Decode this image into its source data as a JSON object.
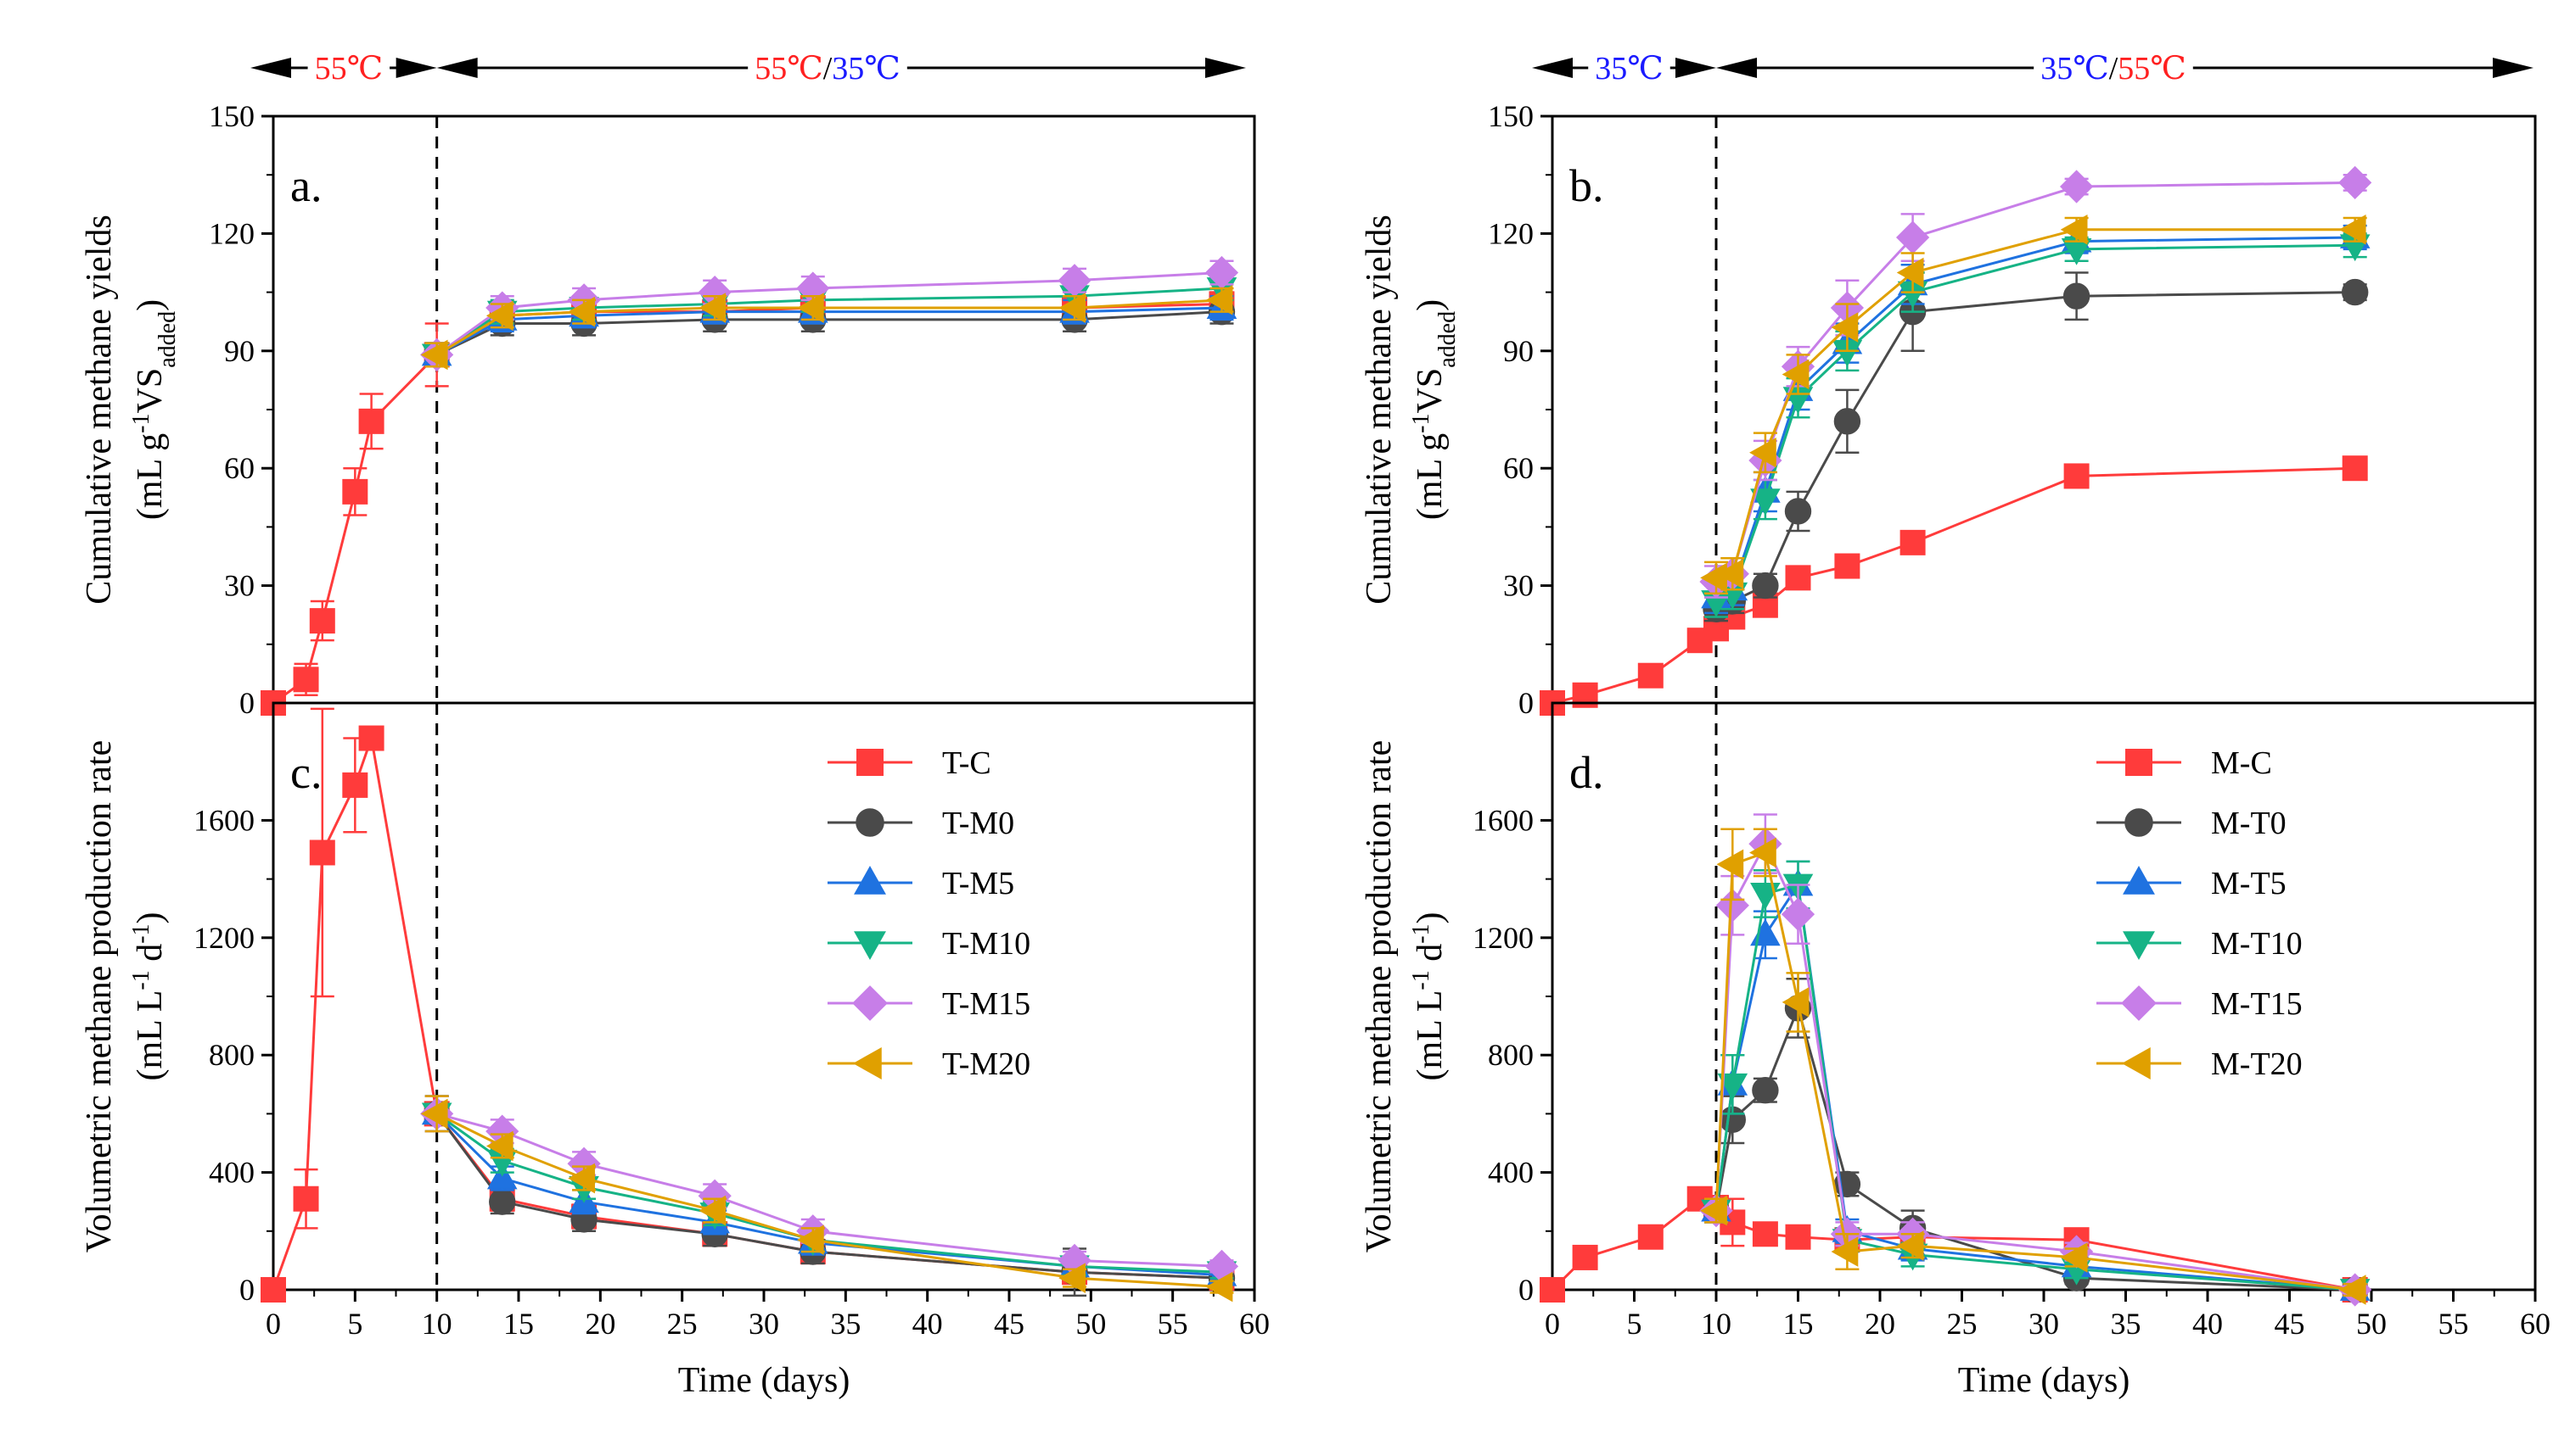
{
  "figure": {
    "xlabel": "Time (days)",
    "ylabel_cumulative_line1": "Cumulative methane yields",
    "ylabel_cumulative_line2": [
      "(mL g",
      "-1",
      "VS",
      "added",
      ")"
    ],
    "ylabel_rate_line1": "Volumetric methane production rate",
    "ylabel_rate_line2": [
      "(mL L",
      "-1",
      " d",
      "-1",
      ")"
    ]
  },
  "colors": {
    "C": "#ff3b3b",
    "C0": "#4a4a4a",
    "C5": "#1f72e0",
    "C10": "#16b386",
    "C15": "#c77ee8",
    "C20": "#e0a000",
    "red_text": "#ff2020",
    "blue_text": "#1a1aff"
  },
  "temperature_bar": {
    "left": {
      "phase1": "55℃",
      "phase2_a": "55℃",
      "phase2_sep": "/",
      "phase2_b": "35℃"
    },
    "right": {
      "phase1": "35℃",
      "phase2_a": "35℃",
      "phase2_sep": "/",
      "phase2_b": "55℃"
    }
  },
  "chart_data": [
    {
      "type": "line",
      "panel": "a.",
      "ylim": [
        0,
        150
      ],
      "yticks": [
        0,
        30,
        60,
        90,
        120,
        150
      ],
      "xlim": [
        0,
        60
      ],
      "switch_day": 10,
      "series": [
        {
          "name": "T-C",
          "marker": "square",
          "color": "#ff3b3b",
          "x": [
            0,
            2,
            3,
            5,
            6,
            10,
            14,
            19,
            27,
            33,
            49,
            58
          ],
          "y": [
            0,
            6,
            21,
            54,
            72,
            89,
            99,
            100,
            100,
            101,
            101,
            102
          ],
          "err": [
            0,
            4,
            5,
            6,
            7,
            8,
            3,
            3,
            3,
            3,
            3,
            3
          ]
        },
        {
          "name": "T-M0",
          "marker": "circle",
          "color": "#4a4a4a",
          "x": [
            10,
            14,
            19,
            27,
            33,
            49,
            58
          ],
          "y": [
            89,
            97,
            97,
            98,
            98,
            98,
            100
          ],
          "err": [
            3,
            3,
            3,
            3,
            3,
            3,
            3
          ]
        },
        {
          "name": "T-M5",
          "marker": "triangle-up",
          "color": "#1f72e0",
          "x": [
            10,
            14,
            19,
            27,
            33,
            49,
            58
          ],
          "y": [
            89,
            98,
            99,
            100,
            100,
            100,
            101
          ],
          "err": [
            3,
            3,
            3,
            3,
            3,
            3,
            3
          ]
        },
        {
          "name": "T-M10",
          "marker": "triangle-down",
          "color": "#16b386",
          "x": [
            10,
            14,
            19,
            27,
            33,
            49,
            58
          ],
          "y": [
            89,
            100,
            101,
            102,
            103,
            104,
            106
          ],
          "err": [
            3,
            3,
            3,
            3,
            3,
            3,
            3
          ]
        },
        {
          "name": "T-M15",
          "marker": "diamond",
          "color": "#c77ee8",
          "x": [
            10,
            14,
            19,
            27,
            33,
            49,
            58
          ],
          "y": [
            89,
            101,
            103,
            105,
            106,
            108,
            110
          ],
          "err": [
            3,
            3,
            3,
            3,
            3,
            3,
            3
          ]
        },
        {
          "name": "T-M20",
          "marker": "triangle-left",
          "color": "#e0a000",
          "x": [
            10,
            14,
            19,
            27,
            33,
            49,
            58
          ],
          "y": [
            89,
            99,
            100,
            101,
            101,
            101,
            103
          ],
          "err": [
            3,
            3,
            3,
            3,
            3,
            3,
            3
          ]
        }
      ]
    },
    {
      "type": "line",
      "panel": "b.",
      "ylim": [
        0,
        150
      ],
      "yticks": [
        0,
        30,
        60,
        90,
        120,
        150
      ],
      "xlim": [
        0,
        60
      ],
      "switch_day": 10,
      "series": [
        {
          "name": "M-C",
          "marker": "square",
          "color": "#ff3b3b",
          "x": [
            0,
            2,
            6,
            9,
            10,
            11,
            13,
            15,
            18,
            22,
            32,
            49
          ],
          "y": [
            0,
            2,
            7,
            16,
            19,
            22,
            25,
            32,
            35,
            41,
            58,
            60
          ],
          "err": [
            0,
            1,
            1,
            1,
            2,
            2,
            2,
            2,
            2,
            2,
            2,
            2
          ]
        },
        {
          "name": "M-T0",
          "marker": "circle",
          "color": "#4a4a4a",
          "x": [
            10,
            11,
            13,
            15,
            18,
            22,
            32,
            49
          ],
          "y": [
            24,
            26,
            30,
            49,
            72,
            100,
            104,
            105
          ],
          "err": [
            3,
            3,
            3,
            5,
            8,
            10,
            6,
            2
          ]
        },
        {
          "name": "M-T5",
          "marker": "triangle-up",
          "color": "#1f72e0",
          "x": [
            10,
            11,
            13,
            15,
            18,
            22,
            32,
            49
          ],
          "y": [
            27,
            29,
            54,
            80,
            92,
            107,
            118,
            119
          ],
          "err": [
            4,
            4,
            5,
            5,
            5,
            5,
            3,
            3
          ]
        },
        {
          "name": "M-T10",
          "marker": "triangle-down",
          "color": "#16b386",
          "x": [
            10,
            11,
            13,
            15,
            18,
            22,
            32,
            49
          ],
          "y": [
            26,
            28,
            52,
            78,
            90,
            105,
            116,
            117
          ],
          "err": [
            4,
            4,
            5,
            5,
            5,
            5,
            3,
            3
          ]
        },
        {
          "name": "M-T15",
          "marker": "diamond",
          "color": "#c77ee8",
          "x": [
            10,
            11,
            13,
            15,
            18,
            22,
            32,
            49
          ],
          "y": [
            31,
            33,
            62,
            86,
            101,
            119,
            132,
            133
          ],
          "err": [
            4,
            4,
            5,
            5,
            7,
            6,
            2,
            2
          ]
        },
        {
          "name": "M-T20",
          "marker": "triangle-left",
          "color": "#e0a000",
          "x": [
            10,
            11,
            13,
            15,
            18,
            22,
            32,
            49
          ],
          "y": [
            32,
            33,
            64,
            84,
            96,
            110,
            121,
            121
          ],
          "err": [
            4,
            4,
            5,
            5,
            6,
            5,
            3,
            3
          ]
        }
      ]
    },
    {
      "type": "line",
      "panel": "c.",
      "ylim": [
        0,
        2000
      ],
      "yticks": [
        0,
        400,
        800,
        1200,
        1600
      ],
      "xlim": [
        0,
        60
      ],
      "xticks": [
        0,
        5,
        10,
        15,
        20,
        25,
        30,
        35,
        40,
        45,
        50,
        55,
        60
      ],
      "switch_day": 10,
      "series": [
        {
          "name": "T-C",
          "marker": "square",
          "color": "#ff3b3b",
          "x": [
            0,
            2,
            3,
            5,
            6,
            10,
            14,
            19,
            27,
            33,
            49,
            58
          ],
          "y": [
            0,
            310,
            1490,
            1720,
            1880,
            600,
            310,
            250,
            190,
            130,
            60,
            40
          ],
          "err": [
            0,
            100,
            490,
            160,
            30,
            60,
            40,
            40,
            40,
            40,
            30,
            20
          ]
        },
        {
          "name": "T-M0",
          "marker": "circle",
          "color": "#4a4a4a",
          "x": [
            10,
            14,
            19,
            27,
            33,
            49,
            58
          ],
          "y": [
            600,
            300,
            240,
            190,
            130,
            60,
            40
          ],
          "err": [
            60,
            40,
            40,
            40,
            40,
            80,
            20
          ]
        },
        {
          "name": "T-M5",
          "marker": "triangle-up",
          "color": "#1f72e0",
          "x": [
            10,
            14,
            19,
            27,
            33,
            49,
            58
          ],
          "y": [
            600,
            380,
            300,
            230,
            160,
            80,
            50
          ],
          "err": [
            60,
            40,
            40,
            40,
            40,
            30,
            20
          ]
        },
        {
          "name": "T-M10",
          "marker": "triangle-down",
          "color": "#16b386",
          "x": [
            10,
            14,
            19,
            27,
            33,
            49,
            58
          ],
          "y": [
            600,
            440,
            350,
            260,
            170,
            80,
            60
          ],
          "err": [
            60,
            40,
            40,
            40,
            40,
            30,
            20
          ]
        },
        {
          "name": "T-M15",
          "marker": "diamond",
          "color": "#c77ee8",
          "x": [
            10,
            14,
            19,
            27,
            33,
            49,
            58
          ],
          "y": [
            600,
            540,
            430,
            320,
            200,
            100,
            80
          ],
          "err": [
            60,
            40,
            40,
            40,
            40,
            30,
            20
          ]
        },
        {
          "name": "T-M20",
          "marker": "triangle-left",
          "color": "#e0a000",
          "x": [
            10,
            14,
            19,
            27,
            33,
            49,
            58
          ],
          "y": [
            600,
            490,
            380,
            270,
            170,
            40,
            10
          ],
          "err": [
            60,
            40,
            40,
            40,
            40,
            30,
            20
          ]
        }
      ]
    },
    {
      "type": "line",
      "panel": "d.",
      "ylim": [
        0,
        2000
      ],
      "yticks": [
        0,
        400,
        800,
        1200,
        1600
      ],
      "xlim": [
        0,
        60
      ],
      "xticks": [
        0,
        5,
        10,
        15,
        20,
        25,
        30,
        35,
        40,
        45,
        50,
        55,
        60
      ],
      "switch_day": 10,
      "series": [
        {
          "name": "M-C",
          "marker": "square",
          "color": "#ff3b3b",
          "x": [
            0,
            2,
            6,
            9,
            10,
            11,
            13,
            15,
            18,
            22,
            32,
            49
          ],
          "y": [
            0,
            110,
            180,
            310,
            280,
            230,
            190,
            180,
            170,
            180,
            170,
            0
          ],
          "err": [
            0,
            20,
            20,
            20,
            40,
            80,
            20,
            20,
            30,
            30,
            30,
            20
          ]
        },
        {
          "name": "M-T0",
          "marker": "circle",
          "color": "#4a4a4a",
          "x": [
            10,
            11,
            13,
            15,
            18,
            22,
            32,
            49
          ],
          "y": [
            270,
            580,
            680,
            960,
            360,
            210,
            40,
            0
          ],
          "err": [
            40,
            80,
            40,
            100,
            40,
            60,
            20,
            20
          ]
        },
        {
          "name": "M-T5",
          "marker": "triangle-up",
          "color": "#1f72e0",
          "x": [
            10,
            11,
            13,
            15,
            18,
            22,
            32,
            49
          ],
          "y": [
            270,
            700,
            1210,
            1380,
            200,
            140,
            80,
            0
          ],
          "err": [
            40,
            100,
            80,
            80,
            40,
            40,
            30,
            20
          ]
        },
        {
          "name": "M-T10",
          "marker": "triangle-down",
          "color": "#16b386",
          "x": [
            10,
            11,
            13,
            15,
            18,
            22,
            32,
            49
          ],
          "y": [
            270,
            700,
            1350,
            1380,
            170,
            120,
            70,
            0
          ],
          "err": [
            40,
            100,
            80,
            80,
            40,
            40,
            30,
            20
          ]
        },
        {
          "name": "M-T15",
          "marker": "diamond",
          "color": "#c77ee8",
          "x": [
            10,
            11,
            13,
            15,
            18,
            22,
            32,
            49
          ],
          "y": [
            270,
            1310,
            1520,
            1280,
            190,
            190,
            130,
            0
          ],
          "err": [
            40,
            100,
            100,
            100,
            40,
            40,
            30,
            20
          ]
        },
        {
          "name": "M-T20",
          "marker": "triangle-left",
          "color": "#e0a000",
          "x": [
            10,
            11,
            13,
            15,
            18,
            22,
            32,
            49
          ],
          "y": [
            270,
            1450,
            1490,
            980,
            130,
            150,
            110,
            0
          ],
          "err": [
            40,
            120,
            80,
            100,
            60,
            40,
            30,
            20
          ]
        }
      ]
    }
  ]
}
